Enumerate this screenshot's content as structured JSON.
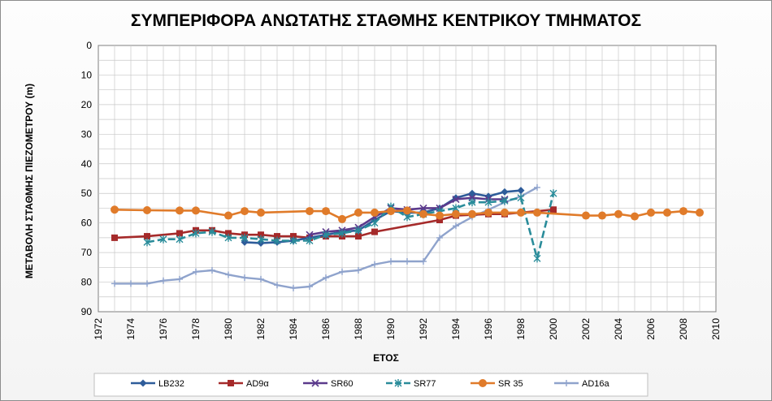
{
  "chart_data": {
    "type": "line",
    "title": "ΣΥΜΠΕΡΙΦΟΡΑ ΑΝΩΤΑΤΗΣ ΣΤΑΘΜΗΣ ΚΕΝΤΡΙΚΟΥ ΤΜΗΜΑΤΟΣ",
    "xlabel": "ΕΤΟΣ",
    "ylabel": "ΜΕΤΑΒΟΛΗ ΣΤΑΘΜΗΣ ΠΙΕΖΟΜΕΤΡΟΥ (m)",
    "xlim": [
      1972,
      2010
    ],
    "ylim": [
      0,
      90
    ],
    "y_reversed": true,
    "x_ticks": [
      "1972",
      "1974",
      "1976",
      "1978",
      "1980",
      "1982",
      "1984",
      "1986",
      "1988",
      "1990",
      "1992",
      "1994",
      "1996",
      "1998",
      "2000",
      "2002",
      "2004",
      "2006",
      "2008",
      "2010"
    ],
    "y_ticks": [
      "0",
      "10",
      "20",
      "30",
      "40",
      "50",
      "60",
      "70",
      "80",
      "90"
    ],
    "grid": true,
    "legend_position": "bottom",
    "series": [
      {
        "name": "LB232",
        "color": "#2e5c9a",
        "marker": "diamond",
        "x": [
          1981,
          1982,
          1983,
          1984,
          1985,
          1986,
          1987,
          1988,
          1989,
          1990,
          1991,
          1992,
          1993,
          1994,
          1995,
          1996,
          1997,
          1998
        ],
        "y": [
          66.5,
          66.8,
          66.5,
          66.0,
          65.0,
          64.0,
          63.0,
          62.5,
          59.0,
          56.0,
          56.5,
          56.5,
          55.0,
          51.5,
          50.0,
          51.0,
          49.5,
          49.0
        ]
      },
      {
        "name": "AD9α",
        "color": "#a52a2a",
        "marker": "square",
        "x": [
          1973,
          1975,
          1977,
          1978,
          1979,
          1980,
          1981,
          1982,
          1983,
          1984,
          1985,
          1986,
          1987,
          1988,
          1989,
          1993,
          1994,
          1996,
          1997,
          2000
        ],
        "y": [
          65.0,
          64.5,
          63.5,
          62.5,
          62.5,
          63.5,
          64.0,
          64.0,
          64.5,
          64.5,
          65.0,
          64.5,
          64.5,
          64.5,
          63.0,
          59.0,
          57.5,
          57.0,
          57.0,
          55.5
        ]
      },
      {
        "name": "SR60",
        "color": "#5b3a8c",
        "marker": "x",
        "x": [
          1985,
          1986,
          1987,
          1988,
          1989,
          1990,
          1991,
          1992,
          1993,
          1994,
          1995,
          1996,
          1997
        ],
        "y": [
          64.0,
          63.0,
          62.5,
          61.5,
          58.0,
          55.0,
          55.5,
          55.0,
          55.0,
          52.0,
          51.5,
          52.0,
          52.0
        ]
      },
      {
        "name": "SR77",
        "color": "#2a8c9a",
        "marker": "star",
        "x": [
          1975,
          1976,
          1977,
          1978,
          1979,
          1980,
          1981,
          1982,
          1983,
          1984,
          1985,
          1986,
          1987,
          1988,
          1989,
          1990,
          1991,
          1992,
          1993,
          1994,
          1995,
          1996,
          1997,
          1998,
          1999,
          2000
        ],
        "y": [
          66.5,
          65.5,
          65.5,
          63.5,
          63.0,
          65.0,
          65.0,
          65.5,
          66.0,
          66.0,
          66.0,
          64.0,
          63.5,
          62.5,
          60.0,
          54.5,
          58.0,
          57.0,
          56.0,
          55.0,
          53.0,
          53.0,
          52.5,
          51.5,
          72.0,
          50.0
        ]
      },
      {
        "name": "SR 35",
        "color": "#e07b2a",
        "marker": "circle",
        "x": [
          1973,
          1975,
          1977,
          1978,
          1980,
          1981,
          1982,
          1985,
          1986,
          1987,
          1988,
          1989,
          1990,
          1991,
          1992,
          1993,
          1994,
          1995,
          1996,
          1997,
          1998,
          1999,
          2002,
          2003,
          2004,
          2005,
          2006,
          2007,
          2008,
          2009
        ],
        "y": [
          55.5,
          55.7,
          55.8,
          55.8,
          57.5,
          56.0,
          56.5,
          56.0,
          56.0,
          58.7,
          56.5,
          56.5,
          56.0,
          55.8,
          57.0,
          57.5,
          57.0,
          57.0,
          56.5,
          56.5,
          56.5,
          56.5,
          57.5,
          57.5,
          57.0,
          57.8,
          56.5,
          56.5,
          56.0,
          56.5
        ]
      },
      {
        "name": "AD16a",
        "color": "#8fa3cc",
        "marker": "plus",
        "x": [
          1973,
          1974,
          1975,
          1976,
          1977,
          1978,
          1979,
          1980,
          1981,
          1982,
          1983,
          1984,
          1985,
          1986,
          1987,
          1988,
          1989,
          1990,
          1991,
          1992,
          1993,
          1994,
          1995,
          1996,
          1997,
          1998,
          1999
        ],
        "y": [
          80.5,
          80.5,
          80.5,
          79.5,
          79.0,
          76.5,
          76.0,
          77.5,
          78.5,
          79.0,
          81.0,
          82.0,
          81.5,
          78.5,
          76.5,
          76.0,
          74.0,
          73.0,
          73.0,
          73.0,
          65.0,
          61.0,
          58.0,
          55.5,
          53.0,
          51.0,
          48.0
        ]
      }
    ]
  }
}
